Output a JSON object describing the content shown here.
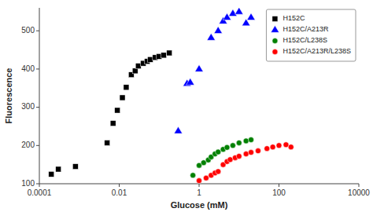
{
  "chart_data": {
    "type": "scatter",
    "xlabel": "Glucose (mM)",
    "ylabel": "Fluorescence",
    "log": "x",
    "grid": false,
    "legend": "upper right",
    "xlim": [
      0.0001,
      10000
    ],
    "ylim": [
      100,
      560
    ],
    "xticks": [
      0.0001,
      0.01,
      1,
      100,
      10000
    ],
    "yticks": [
      100,
      200,
      300,
      400,
      500
    ],
    "series": [
      {
        "name": "H152C",
        "color": "black",
        "marker": "square",
        "x": [
          0.0002,
          0.0003,
          0.0008,
          0.005,
          0.007,
          0.009,
          0.012,
          0.015,
          0.02,
          0.025,
          0.03,
          0.04,
          0.05,
          0.06,
          0.08,
          0.1,
          0.13,
          0.18
        ],
        "values": [
          125,
          138,
          145,
          207,
          258,
          292,
          325,
          352,
          385,
          395,
          408,
          415,
          420,
          425,
          430,
          433,
          436,
          442
        ]
      },
      {
        "name": "H152C/A213R",
        "color": "blue",
        "marker": "triangle",
        "x": [
          0.3,
          0.5,
          0.6,
          1.0,
          2.0,
          3.0,
          4.0,
          5.0,
          7.0,
          10.0,
          15.0,
          20.0
        ],
        "values": [
          238,
          362,
          365,
          400,
          482,
          500,
          525,
          535,
          545,
          550,
          520,
          535
        ]
      },
      {
        "name": "H152C/L238S",
        "color": "green",
        "marker": "circle",
        "x": [
          0.7,
          1.0,
          1.3,
          1.7,
          2.0,
          2.5,
          3.0,
          4.0,
          5.0,
          7.0,
          10.0,
          15.0,
          20.0
        ],
        "values": [
          122,
          148,
          155,
          162,
          170,
          178,
          183,
          190,
          195,
          200,
          207,
          212,
          215
        ]
      },
      {
        "name": "H152C/A213R/L238S",
        "color": "red",
        "marker": "circle",
        "x": [
          1.0,
          1.5,
          2.0,
          2.5,
          3.0,
          4.0,
          5.0,
          6.0,
          8.0,
          10.0,
          15.0,
          20.0,
          30.0,
          50.0,
          70.0,
          100.0,
          150.0,
          200.0
        ],
        "values": [
          108,
          115,
          122,
          128,
          132,
          150,
          158,
          163,
          168,
          172,
          178,
          182,
          186,
          192,
          196,
          200,
          202,
          196
        ]
      }
    ]
  }
}
